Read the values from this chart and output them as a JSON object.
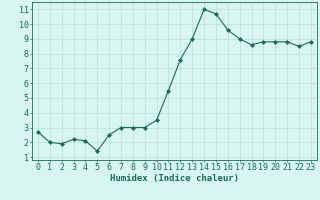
{
  "x": [
    0,
    1,
    2,
    3,
    4,
    5,
    6,
    7,
    8,
    9,
    10,
    11,
    12,
    13,
    14,
    15,
    16,
    17,
    18,
    19,
    20,
    21,
    22,
    23
  ],
  "y": [
    2.7,
    2.0,
    1.9,
    2.2,
    2.1,
    1.4,
    2.5,
    3.0,
    3.0,
    3.0,
    3.5,
    5.5,
    7.6,
    9.0,
    11.0,
    10.7,
    9.6,
    9.0,
    8.6,
    8.8,
    8.8,
    8.8,
    8.5,
    8.8
  ],
  "line_color": "#1a6b5a",
  "bg_color": "#d8f5f0",
  "grid_color": "#b8e0da",
  "xlabel": "Humidex (Indice chaleur)",
  "ylabel_ticks": [
    1,
    2,
    3,
    4,
    5,
    6,
    7,
    8,
    9,
    10,
    11
  ],
  "xlim": [
    -0.5,
    23.5
  ],
  "ylim": [
    0.8,
    11.5
  ],
  "xlabel_fontsize": 6.5,
  "tick_fontsize": 6
}
